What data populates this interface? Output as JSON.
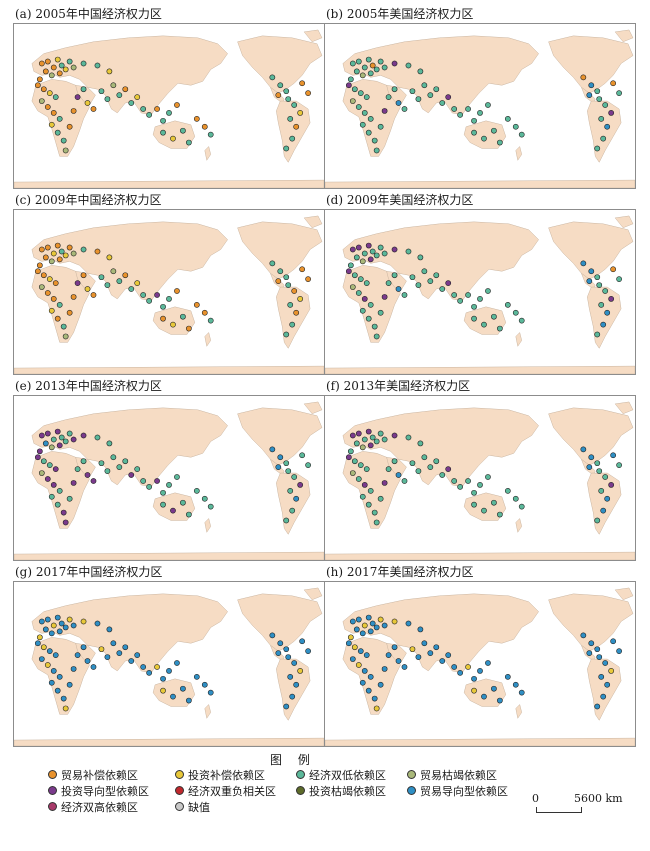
{
  "panels": [
    {
      "title": "(a) 2005年中国经济权力区",
      "dots": [
        0,
        0,
        0,
        1,
        2,
        0,
        3,
        0,
        0,
        1,
        2,
        3,
        0,
        0,
        1,
        2,
        3,
        0,
        0,
        2,
        1,
        2,
        2,
        3,
        0,
        0,
        4,
        2,
        1,
        0,
        2,
        2,
        3,
        2,
        0,
        2,
        1,
        2,
        2,
        0,
        2,
        2,
        0,
        2,
        1,
        2,
        2,
        0,
        0,
        2,
        2,
        2,
        2,
        0,
        2,
        2,
        1,
        2,
        0,
        2,
        2,
        0,
        0,
        2,
        2,
        1
      ]
    },
    {
      "title": "(b) 2005年美国经济权力区",
      "dots": [
        2,
        2,
        2,
        2,
        0,
        2,
        3,
        2,
        2,
        2,
        2,
        2,
        4,
        2,
        2,
        2,
        3,
        2,
        2,
        2,
        2,
        2,
        2,
        2,
        2,
        4,
        2,
        2,
        7,
        2,
        2,
        2,
        2,
        2,
        2,
        2,
        4,
        2,
        2,
        2,
        2,
        2,
        2,
        2,
        2,
        2,
        2,
        2,
        2,
        2,
        0,
        7,
        2,
        7,
        2,
        2,
        4,
        2,
        7,
        2,
        2,
        0,
        2,
        4,
        2,
        2
      ]
    },
    {
      "title": "(c) 2009年中国经济权力区",
      "dots": [
        0,
        0,
        1,
        0,
        2,
        0,
        3,
        0,
        0,
        1,
        0,
        3,
        0,
        0,
        1,
        0,
        3,
        0,
        0,
        2,
        1,
        0,
        2,
        3,
        0,
        0,
        4,
        0,
        1,
        0,
        2,
        2,
        3,
        2,
        0,
        2,
        1,
        2,
        2,
        4,
        2,
        2,
        0,
        0,
        1,
        2,
        0,
        0,
        0,
        2,
        2,
        2,
        2,
        0,
        2,
        0,
        1,
        2,
        0,
        2,
        2,
        0,
        0,
        2,
        0,
        1
      ]
    },
    {
      "title": "(d) 2009年美国经济权力区",
      "dots": [
        4,
        4,
        2,
        4,
        2,
        2,
        3,
        2,
        4,
        2,
        2,
        2,
        4,
        2,
        2,
        2,
        3,
        2,
        4,
        2,
        2,
        2,
        2,
        2,
        2,
        4,
        2,
        2,
        7,
        2,
        2,
        2,
        2,
        2,
        2,
        2,
        4,
        2,
        2,
        2,
        2,
        2,
        2,
        2,
        2,
        2,
        2,
        2,
        2,
        2,
        7,
        7,
        2,
        7,
        2,
        2,
        4,
        2,
        7,
        7,
        2,
        0,
        2,
        4,
        2,
        2
      ]
    },
    {
      "title": "(e) 2013年中国经济权力区",
      "dots": [
        4,
        4,
        2,
        4,
        2,
        7,
        3,
        4,
        4,
        2,
        2,
        4,
        4,
        2,
        2,
        4,
        3,
        4,
        4,
        2,
        2,
        2,
        4,
        4,
        2,
        4,
        2,
        2,
        4,
        4,
        2,
        2,
        2,
        2,
        2,
        4,
        2,
        2,
        2,
        4,
        2,
        2,
        2,
        2,
        4,
        2,
        2,
        2,
        2,
        2,
        7,
        7,
        2,
        7,
        2,
        2,
        4,
        2,
        7,
        2,
        2,
        2,
        2,
        4,
        2,
        2
      ]
    },
    {
      "title": "(f) 2013年美国经济权力区",
      "dots": [
        4,
        4,
        2,
        4,
        2,
        2,
        3,
        2,
        4,
        2,
        2,
        2,
        4,
        2,
        2,
        2,
        3,
        2,
        4,
        2,
        2,
        2,
        2,
        2,
        2,
        4,
        2,
        2,
        7,
        2,
        2,
        2,
        2,
        2,
        2,
        2,
        4,
        2,
        2,
        2,
        2,
        2,
        2,
        2,
        2,
        2,
        2,
        2,
        2,
        2,
        7,
        7,
        2,
        7,
        2,
        2,
        4,
        2,
        7,
        7,
        2,
        7,
        2,
        4,
        2,
        2
      ]
    },
    {
      "title": "(g) 2017年中国经济权力区",
      "dots": [
        7,
        7,
        1,
        7,
        7,
        7,
        7,
        1,
        7,
        7,
        1,
        7,
        7,
        1,
        7,
        7,
        7,
        1,
        7,
        7,
        7,
        7,
        7,
        1,
        7,
        7,
        7,
        7,
        7,
        7,
        1,
        7,
        7,
        7,
        7,
        7,
        7,
        7,
        7,
        1,
        7,
        7,
        7,
        1,
        7,
        7,
        7,
        7,
        7,
        7,
        7,
        7,
        7,
        7,
        7,
        7,
        1,
        7,
        7,
        7,
        7,
        7,
        7,
        1,
        7,
        7
      ]
    },
    {
      "title": "(h) 2017年美国经济权力区",
      "dots": [
        7,
        7,
        1,
        7,
        7,
        7,
        7,
        1,
        7,
        7,
        1,
        7,
        7,
        1,
        7,
        7,
        7,
        1,
        7,
        7,
        7,
        7,
        7,
        1,
        7,
        7,
        7,
        7,
        7,
        7,
        1,
        7,
        7,
        7,
        7,
        7,
        7,
        7,
        7,
        1,
        7,
        7,
        7,
        1,
        7,
        7,
        7,
        7,
        7,
        7,
        7,
        7,
        7,
        7,
        7,
        7,
        1,
        7,
        7,
        7,
        7,
        7,
        7,
        1,
        7,
        7
      ]
    }
  ],
  "legend": {
    "title": "图 例",
    "items": [
      {
        "label": "贸易补偿依赖区",
        "color": "#e8922d"
      },
      {
        "label": "投资补偿依赖区",
        "color": "#e8c83a"
      },
      {
        "label": "经济双低依赖区",
        "color": "#5bb89a"
      },
      {
        "label": "贸易枯竭依赖区",
        "color": "#a9b87a"
      },
      {
        "label": "投资导向型依赖区",
        "color": "#7a3a8c"
      },
      {
        "label": "经济双重负相关区",
        "color": "#c0282d"
      },
      {
        "label": "投资枯竭依赖区",
        "color": "#5d6b2a"
      },
      {
        "label": "贸易导向型依赖区",
        "color": "#2f8fc4"
      },
      {
        "label": "经济双高依赖区",
        "color": "#a83a6a"
      },
      {
        "label": "缺值",
        "color": "#c9c9c9"
      }
    ]
  },
  "scalebar": {
    "zero": "0",
    "max": "5600 km"
  },
  "map_colors": {
    "land": "#f6dcc4",
    "ocean": "#ffffff",
    "border": "#c8b4a0"
  }
}
